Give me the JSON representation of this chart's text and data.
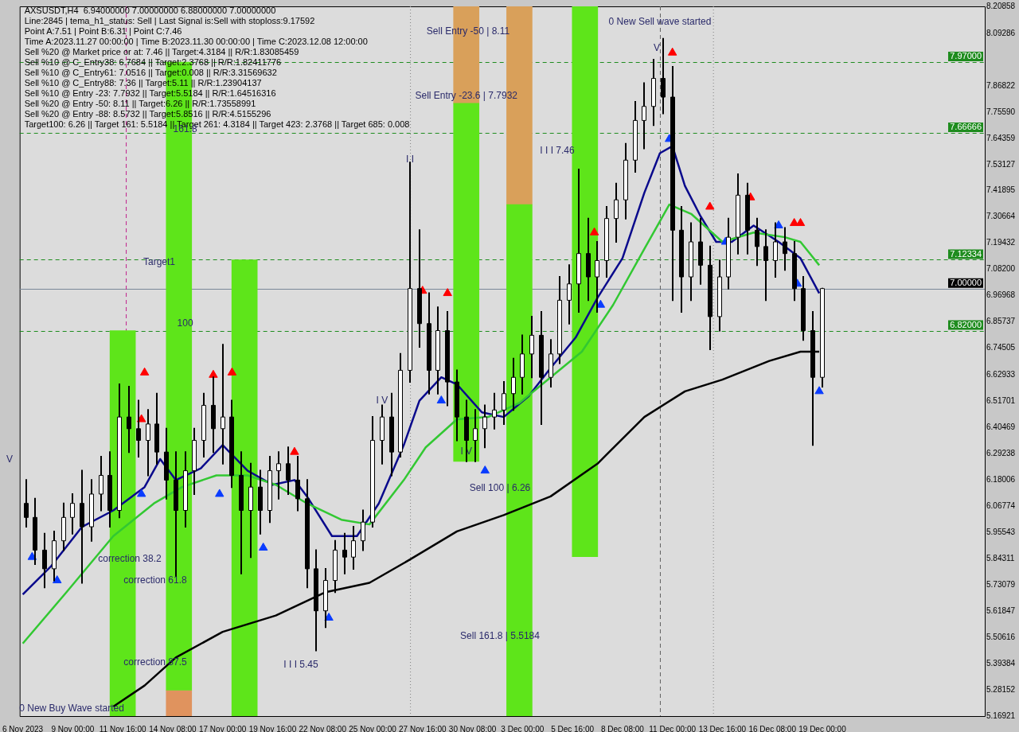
{
  "chart_data": {
    "type": "candlestick",
    "title": "AXSUSDT,H4  6.94000000 7.00000000 6.88000000 7.00000000",
    "annotations": [
      "Line:2845 | tema_h1_status: Sell | Last Signal is:Sell with stoploss:9.17592",
      "Point A:7.51 | Point B:6.31 | Point C:7.46",
      "Time A:2023.11.27 00:00:00 | Time B:2023.11.30 00:00:00 | Time C:2023.12.08 12:00:00",
      "Sell %20 @ Market price or at: 7.46 || Target:4.3184 || R/R:1.83085459",
      "Sell %10 @ C_Entry38: 6.7684 || Target:2.3768 || R/R:1.82411776",
      "Sell %10 @ C_Entry61: 7.0516 || Target:0.008 || R/R:3.31569632",
      "Sell %10 @ C_Entry88: 7.36 || Target:5.11 || R/R:1.23904137",
      "Sell %10 @ Entry -23: 7.7932 || Target:5.5184 || R/R:1.64516316",
      "Sell %20 @ Entry -50: 8.11 || Target:6.26 || R/R:1.73558991",
      "Sell %20 @ Entry -88: 8.5732 || Target:5.8516 || R/R:4.5155296",
      "Target100: 6.26 || Target 161: 5.5184 || Target 261: 4.3184 || Target 423: 2.3768 || Target 685: 0.008",
      "Sell Entry -50 | 8.11",
      {
        "text": "Sell Entry -23.6 | 7.7932",
        "x": "2023-11-30T00:00",
        "y": 7.7932
      },
      "Sell 100 | 6.26",
      "Sell 161.8 | 5.5184",
      {
        "text": "0 New Sell wave started",
        "x": "2023-12-10T08:00",
        "y": 8.11
      },
      "I I I 7.46",
      "I I I 5.45",
      "0 New Buy Wave started",
      {
        "text": "161.8",
        "x": "2023-11-15T00:00",
        "y": 7.65
      },
      "Target1",
      {
        "text": "100",
        "x": "2023-11-15T00:00",
        "y": 6.82
      },
      "correction 38.2",
      "correction 61.8",
      "correction 87.5",
      {
        "text": "I I",
        "x": "2023-11-27T00:00",
        "y": 7.52
      },
      {
        "text": "I V",
        "x": "2023-11-25T12:00",
        "y": 6.49
      },
      {
        "text": "I V",
        "x": "2023-11-30T00:00",
        "y": 6.27
      },
      {
        "text": "V",
        "x": "2023-12-10T04:00",
        "y": 8.0
      },
      "V"
    ],
    "x": [
      "2023-11-06T12:00",
      "2023-11-07T00:00",
      "2023-11-07T12:00",
      "2023-11-08T00:00",
      "2023-11-08T12:00",
      "2023-11-09T00:00",
      "2023-11-09T12:00",
      "2023-11-10T00:00",
      "2023-11-10T12:00",
      "2023-11-11T00:00",
      "2023-11-11T12:00",
      "2023-11-12T00:00",
      "2023-11-12T12:00",
      "2023-11-13T00:00",
      "2023-11-13T12:00",
      "2023-11-14T00:00",
      "2023-11-14T12:00",
      "2023-11-15T00:00",
      "2023-11-15T12:00",
      "2023-11-16T00:00",
      "2023-11-16T12:00",
      "2023-11-17T00:00",
      "2023-11-17T12:00",
      "2023-11-18T00:00",
      "2023-11-18T12:00",
      "2023-11-19T00:00",
      "2023-11-19T12:00",
      "2023-11-20T00:00",
      "2023-11-20T12:00",
      "2023-11-21T00:00",
      "2023-11-21T12:00",
      "2023-11-22T00:00",
      "2023-11-22T12:00",
      "2023-11-23T00:00",
      "2023-11-23T12:00",
      "2023-11-24T00:00",
      "2023-11-24T12:00",
      "2023-11-25T00:00",
      "2023-11-25T12:00",
      "2023-11-26T00:00",
      "2023-11-26T12:00",
      "2023-11-27T00:00",
      "2023-11-27T12:00",
      "2023-11-28T00:00",
      "2023-11-28T12:00",
      "2023-11-29T00:00",
      "2023-11-29T12:00",
      "2023-11-30T00:00",
      "2023-11-30T12:00",
      "2023-12-01T00:00",
      "2023-12-01T12:00",
      "2023-12-02T00:00",
      "2023-12-02T12:00",
      "2023-12-03T00:00",
      "2023-12-03T12:00",
      "2023-12-04T00:00",
      "2023-12-04T12:00",
      "2023-12-05T00:00",
      "2023-12-05T12:00",
      "2023-12-06T00:00",
      "2023-12-06T12:00",
      "2023-12-07T00:00",
      "2023-12-07T12:00",
      "2023-12-08T00:00",
      "2023-12-08T12:00",
      "2023-12-09T00:00",
      "2023-12-09T12:00",
      "2023-12-10T00:00",
      "2023-12-10T12:00",
      "2023-12-11T00:00",
      "2023-12-11T12:00",
      "2023-12-12T00:00",
      "2023-12-12T12:00",
      "2023-12-13T00:00",
      "2023-12-13T12:00",
      "2023-12-14T00:00",
      "2023-12-14T12:00",
      "2023-12-15T00:00",
      "2023-12-15T12:00",
      "2023-12-16T00:00",
      "2023-12-16T12:00",
      "2023-12-17T00:00",
      "2023-12-17T12:00",
      "2023-12-18T00:00",
      "2023-12-18T12:00",
      "2023-12-19T00:00"
    ],
    "ohlc": [
      [
        6.08,
        6.18,
        5.98,
        6.02
      ],
      [
        6.02,
        6.1,
        5.82,
        5.88
      ],
      [
        5.88,
        5.95,
        5.72,
        5.8
      ],
      [
        5.8,
        5.96,
        5.75,
        5.92
      ],
      [
        5.92,
        6.08,
        5.88,
        6.02
      ],
      [
        6.02,
        6.12,
        5.95,
        6.08
      ],
      [
        6.08,
        6.22,
        5.74,
        5.98
      ],
      [
        5.98,
        6.18,
        5.92,
        6.12
      ],
      [
        6.12,
        6.28,
        6.05,
        6.2
      ],
      [
        6.2,
        6.3,
        5.98,
        6.05
      ],
      [
        6.05,
        6.59,
        6.02,
        6.45
      ],
      [
        6.45,
        6.58,
        6.3,
        6.4
      ],
      [
        6.4,
        6.52,
        6.28,
        6.35
      ],
      [
        6.35,
        6.48,
        6.2,
        6.42
      ],
      [
        6.42,
        6.55,
        6.25,
        6.3
      ],
      [
        6.3,
        6.4,
        6.1,
        6.18
      ],
      [
        6.18,
        6.3,
        5.77,
        6.05
      ],
      [
        6.05,
        6.3,
        5.98,
        6.22
      ],
      [
        6.22,
        6.4,
        6.12,
        6.35
      ],
      [
        6.35,
        6.55,
        6.28,
        6.5
      ],
      [
        6.5,
        6.62,
        6.3,
        6.4
      ],
      [
        6.4,
        6.76,
        6.25,
        6.45
      ],
      [
        6.45,
        6.52,
        6.15,
        6.2
      ],
      [
        6.2,
        6.3,
        5.78,
        6.05
      ],
      [
        6.05,
        6.25,
        5.85,
        6.15
      ],
      [
        6.15,
        6.22,
        5.95,
        6.05
      ],
      [
        6.05,
        6.28,
        6.0,
        6.22
      ],
      [
        6.22,
        6.3,
        6.1,
        6.25
      ],
      [
        6.25,
        6.32,
        6.12,
        6.18
      ],
      [
        6.18,
        6.28,
        6.05,
        6.1
      ],
      [
        6.1,
        6.18,
        5.72,
        5.8
      ],
      [
        5.8,
        5.88,
        5.45,
        5.62
      ],
      [
        5.62,
        5.8,
        5.55,
        5.75
      ],
      [
        5.75,
        5.92,
        5.7,
        5.88
      ],
      [
        5.88,
        5.95,
        5.78,
        5.85
      ],
      [
        5.85,
        5.98,
        5.8,
        5.92
      ],
      [
        5.92,
        6.05,
        5.88,
        6.0
      ],
      [
        6.0,
        6.45,
        5.98,
        6.35
      ],
      [
        6.35,
        6.5,
        6.25,
        6.45
      ],
      [
        6.45,
        6.55,
        6.2,
        6.3
      ],
      [
        6.3,
        6.72,
        6.28,
        6.65
      ],
      [
        6.65,
        7.54,
        6.6,
        7.0
      ],
      [
        7.0,
        7.25,
        6.75,
        6.85
      ],
      [
        6.85,
        6.98,
        6.55,
        6.65
      ],
      [
        6.65,
        6.92,
        6.55,
        6.82
      ],
      [
        6.82,
        6.9,
        6.5,
        6.6
      ],
      [
        6.6,
        6.65,
        6.35,
        6.45
      ],
      [
        6.45,
        6.52,
        6.26,
        6.35
      ],
      [
        6.35,
        6.48,
        6.26,
        6.4
      ],
      [
        6.4,
        6.5,
        6.32,
        6.45
      ],
      [
        6.45,
        6.55,
        6.4,
        6.48
      ],
      [
        6.48,
        6.6,
        6.42,
        6.55
      ],
      [
        6.55,
        6.7,
        6.48,
        6.62
      ],
      [
        6.62,
        6.8,
        6.55,
        6.72
      ],
      [
        6.72,
        6.88,
        6.62,
        6.8
      ],
      [
        6.8,
        6.9,
        6.42,
        6.62
      ],
      [
        6.62,
        6.78,
        6.58,
        6.72
      ],
      [
        6.72,
        7.05,
        6.68,
        6.95
      ],
      [
        6.95,
        7.1,
        6.85,
        7.02
      ],
      [
        7.02,
        7.51,
        6.9,
        7.15
      ],
      [
        7.15,
        7.3,
        6.95,
        7.05
      ],
      [
        7.05,
        7.2,
        6.9,
        7.12
      ],
      [
        7.12,
        7.35,
        7.05,
        7.3
      ],
      [
        7.3,
        7.45,
        7.2,
        7.38
      ],
      [
        7.38,
        7.62,
        7.3,
        7.55
      ],
      [
        7.55,
        7.8,
        7.5,
        7.72
      ],
      [
        7.72,
        7.88,
        7.6,
        7.78
      ],
      [
        7.78,
        7.98,
        7.7,
        7.9
      ],
      [
        7.9,
        8.07,
        7.75,
        7.82
      ],
      [
        7.82,
        7.95,
        6.95,
        7.25
      ],
      [
        7.25,
        7.35,
        6.9,
        7.05
      ],
      [
        7.05,
        7.28,
        6.95,
        7.2
      ],
      [
        7.2,
        7.3,
        7.02,
        7.1
      ],
      [
        7.1,
        7.18,
        6.74,
        6.88
      ],
      [
        6.88,
        7.12,
        6.82,
        7.05
      ],
      [
        7.05,
        7.3,
        7.0,
        7.22
      ],
      [
        7.22,
        7.49,
        7.15,
        7.4
      ],
      [
        7.4,
        7.45,
        7.15,
        7.25
      ],
      [
        7.25,
        7.3,
        7.1,
        7.18
      ],
      [
        7.18,
        7.25,
        6.95,
        7.12
      ],
      [
        7.12,
        7.28,
        7.05,
        7.2
      ],
      [
        7.2,
        7.26,
        7.08,
        7.15
      ],
      [
        7.15,
        7.2,
        6.95,
        7.0
      ],
      [
        7.0,
        7.05,
        6.78,
        6.82
      ],
      [
        6.82,
        6.9,
        6.33,
        6.62
      ],
      [
        6.62,
        7.0,
        6.58,
        7.0
      ]
    ],
    "series": [
      {
        "type": "bar",
        "x": [
          "2023-11-11T16:00",
          "2023-11-14T16:00",
          "2023-11-18T04:00",
          "2023-11-30T00:00",
          "2023-12-02T20:00",
          "2023-12-06T08:00"
        ],
        "base": [
          5.16921,
          5.28,
          5.16921,
          6.26,
          5.16921,
          5.8516
        ],
        "values": [
          1.65079,
          2.69,
          1.95413,
          1.5332,
          2.19079,
          2.35698
        ],
        "color": "#5ee51a"
      },
      {
        "type": "bar",
        "x": [
          "2023-11-14T16:00",
          "2023-11-30T00:00",
          "2023-12-02T20:00"
        ],
        "base": [
          5.16921,
          7.7932,
          7.36
        ],
        "values": [
          0.11079,
          0.41538,
          0.84858
        ],
        "colors": [
          "#e0935e",
          "#d9a05a",
          "#d9a05a"
        ]
      },
      {
        "type": "line",
        "color": "#000000",
        "marker": "none",
        "line_style": "solid",
        "x": [
          "2023-11-11T04:00",
          "2023-11-12T20:00",
          "2023-11-14T12:00",
          "2023-11-17T00:00",
          "2023-11-19T20:00",
          "2023-11-22T12:00",
          "2023-11-24T20:00",
          "2023-11-27T00:00",
          "2023-11-29T12:00",
          "2023-12-02T00:00",
          "2023-12-04T12:00",
          "2023-12-07T00:00",
          "2023-12-09T12:00",
          "2023-12-11T16:00",
          "2023-12-13T16:00",
          "2023-12-16T04:00",
          "2023-12-17T20:00",
          "2023-12-18T20:00"
        ],
        "values": [
          5.21,
          5.3,
          5.42,
          5.53,
          5.6,
          5.7,
          5.74,
          5.84,
          5.96,
          6.03,
          6.11,
          6.25,
          6.45,
          6.56,
          6.61,
          6.69,
          6.73,
          6.73
        ]
      },
      {
        "type": "line",
        "color": "#32c832",
        "marker": "none",
        "line_style": "solid",
        "x": [
          "2023-11-06T08:00",
          "2023-11-08T16:00",
          "2023-11-11T04:00",
          "2023-11-13T08:00",
          "2023-11-14T20:00",
          "2023-11-16T16:00",
          "2023-11-18T08:00",
          "2023-11-19T20:00",
          "2023-11-21T12:00",
          "2023-11-23T08:00",
          "2023-11-24T20:00",
          "2023-11-26T16:00",
          "2023-11-27T20:00",
          "2023-11-29T12:00",
          "2023-12-01T04:00",
          "2023-12-02T20:00",
          "2023-12-04T12:00",
          "2023-12-06T04:00",
          "2023-12-07T20:00",
          "2023-12-09T12:00",
          "2023-12-10T20:00",
          "2023-12-12T00:00",
          "2023-12-13T16:00",
          "2023-12-15T08:00",
          "2023-12-17T00:00",
          "2023-12-17T20:00",
          "2023-12-18T20:00"
        ],
        "values": [
          5.48,
          5.7,
          5.94,
          6.08,
          6.15,
          6.2,
          6.2,
          6.16,
          6.08,
          6.01,
          5.99,
          6.18,
          6.32,
          6.44,
          6.45,
          6.51,
          6.62,
          6.73,
          6.93,
          7.17,
          7.36,
          7.32,
          7.2,
          7.24,
          7.22,
          7.2,
          7.1
        ]
      },
      {
        "type": "line",
        "color": "#0a0a8c",
        "marker": "none",
        "line_style": "solid",
        "x": [
          "2023-11-06T08:00",
          "2023-11-07T20:00",
          "2023-11-09T12:00",
          "2023-11-11T04:00",
          "2023-11-12T20:00",
          "2023-11-13T16:00",
          "2023-11-14T12:00",
          "2023-11-15T20:00",
          "2023-11-17T00:00",
          "2023-11-18T08:00",
          "2023-11-19T16:00",
          "2023-11-20T20:00",
          "2023-11-21T12:00",
          "2023-11-22T20:00",
          "2023-11-24T04:00",
          "2023-11-25T08:00",
          "2023-11-26T16:00",
          "2023-11-27T12:00",
          "2023-11-28T16:00",
          "2023-11-29T12:00",
          "2023-11-30T20:00",
          "2023-12-02T00:00",
          "2023-12-03T08:00",
          "2023-12-04T12:00",
          "2023-12-05T20:00",
          "2023-12-07T00:00",
          "2023-12-08T08:00",
          "2023-12-09T12:00",
          "2023-12-10T08:00",
          "2023-12-11T00:00",
          "2023-12-11T16:00",
          "2023-12-12T12:00",
          "2023-12-13T08:00",
          "2023-12-14T04:00",
          "2023-12-15T08:00",
          "2023-12-16T16:00",
          "2023-12-17T20:00",
          "2023-12-18T20:00"
        ],
        "values": [
          5.69,
          5.81,
          5.98,
          6.05,
          6.15,
          6.27,
          6.18,
          6.23,
          6.33,
          6.22,
          6.16,
          6.18,
          6.11,
          5.94,
          5.94,
          6.08,
          6.33,
          6.52,
          6.62,
          6.59,
          6.47,
          6.45,
          6.54,
          6.66,
          6.79,
          6.96,
          7.13,
          7.41,
          7.58,
          7.61,
          7.44,
          7.31,
          7.2,
          7.2,
          7.27,
          7.2,
          7.13,
          6.98
        ]
      },
      {
        "type": "scatter",
        "color": "#ff0000",
        "marker": "triangle",
        "x": [
          "2023-11-12T16:00",
          "2023-11-12T20:00",
          "2023-11-16T12:00",
          "2023-11-17T12:00",
          "2023-11-20T20:00",
          "2023-11-27T16:00",
          "2023-11-29T00:00",
          "2023-12-06T20:00",
          "2023-12-11T00:00",
          "2023-12-13T00:00",
          "2023-12-15T04:00",
          "2023-12-17T12:00",
          "2023-12-17T20:00"
        ],
        "values": [
          6.44,
          6.64,
          6.63,
          6.64,
          6.3,
          6.99,
          6.98,
          7.24,
          8.01,
          7.35,
          7.39,
          7.28,
          7.28
        ]
      },
      {
        "type": "scatter",
        "color": "#0a3cff",
        "marker": "triangle",
        "x": [
          "2023-11-06T20:00",
          "2023-11-08T04:00",
          "2023-11-12T16:00",
          "2023-11-16T20:00",
          "2023-11-19T04:00",
          "2023-11-22T16:00",
          "2023-11-28T16:00",
          "2023-12-01T00:00",
          "2023-12-07T04:00",
          "2023-12-10T20:00",
          "2023-12-13T20:00",
          "2023-12-16T16:00",
          "2023-12-17T16:00",
          "2023-12-18T20:00"
        ],
        "values": [
          5.85,
          5.75,
          6.12,
          6.12,
          5.89,
          5.59,
          6.52,
          6.22,
          6.93,
          7.64,
          7.2,
          7.27,
          7.02,
          6.56
        ]
      }
    ],
    "ref_lines": [
      {
        "axis": "y",
        "value": 7.97,
        "label": "7.97000",
        "color": "#1e8c1e",
        "line_style": "dashed"
      },
      {
        "axis": "y",
        "value": 7.66666,
        "label": "7.66666",
        "color": "#1e8c1e",
        "line_style": "dashed"
      },
      {
        "axis": "y",
        "value": 7.12334,
        "label": "7.12334",
        "color": "#1e8c1e",
        "line_style": "dashed"
      },
      {
        "axis": "y",
        "value": 6.82,
        "label": "6.82000",
        "color": "#1e8c1e",
        "line_style": "dashed"
      },
      {
        "axis": "y",
        "value": 7.0,
        "label": "7.00000",
        "color": "#7a8898",
        "line_style": "solid"
      },
      {
        "axis": "x",
        "value": "2023-11-11T20:00",
        "color": "#c0208c",
        "line_style": "dashed"
      },
      {
        "axis": "x",
        "value": "2023-11-27T00:00",
        "color": "#808080",
        "line_style": "dotted"
      },
      {
        "axis": "x",
        "value": "2023-12-10T08:00",
        "color": "#606060",
        "line_style": "dashed"
      },
      {
        "axis": "x",
        "value": "2023-12-13T04:00",
        "color": "#808080",
        "line_style": "dotted"
      }
    ],
    "xlim": [
      "2023-11-06T04:00",
      "2023-12-27T16:00"
    ],
    "xticks": [
      {
        "value": "2023-11-06T08:00",
        "label": "6 Nov 2023"
      },
      {
        "value": "2023-11-09T00:00",
        "label": "9 Nov 00:00"
      },
      {
        "value": "2023-11-11T16:00",
        "label": "11 Nov 16:00"
      },
      {
        "value": "2023-11-14T08:00",
        "label": "14 Nov 08:00"
      },
      {
        "value": "2023-11-17T00:00",
        "label": "17 Nov 00:00"
      },
      {
        "value": "2023-11-19T16:00",
        "label": "19 Nov 16:00"
      },
      {
        "value": "2023-11-22T08:00",
        "label": "22 Nov 08:00"
      },
      {
        "value": "2023-11-25T00:00",
        "label": "25 Nov 00:00"
      },
      {
        "value": "2023-11-27T16:00",
        "label": "27 Nov 16:00"
      },
      {
        "value": "2023-11-30T08:00",
        "label": "30 Nov 08:00"
      },
      {
        "value": "2023-12-03T00:00",
        "label": "3 Dec 00:00"
      },
      {
        "value": "2023-12-05T16:00",
        "label": "5 Dec 16:00"
      },
      {
        "value": "2023-12-08T08:00",
        "label": "8 Dec 08:00"
      },
      {
        "value": "2023-12-11T00:00",
        "label": "11 Dec 00:00"
      },
      {
        "value": "2023-12-13T16:00",
        "label": "13 Dec 16:00"
      },
      {
        "value": "2023-12-16T08:00",
        "label": "16 Dec 08:00"
      },
      {
        "value": "2023-12-19T00:00",
        "label": "19 Dec 00:00"
      }
    ],
    "ylim": [
      5.16921,
      8.20858
    ],
    "yticks": [
      8.20858,
      8.09286,
      7.86822,
      {
        "value": 7.7559,
        "label": "7.75590"
      },
      7.64359,
      7.53127,
      7.41895,
      7.30664,
      7.19432,
      {
        "value": 7.082,
        "label": "7.08200"
      },
      6.96968,
      6.85737,
      6.74505,
      6.62933,
      6.51701,
      6.40469,
      6.29238,
      6.18006,
      6.06774,
      5.95543,
      5.84311,
      5.73079,
      5.61847,
      5.50616,
      5.39384,
      5.28152,
      5.16921
    ],
    "grid": false,
    "legend": false
  }
}
